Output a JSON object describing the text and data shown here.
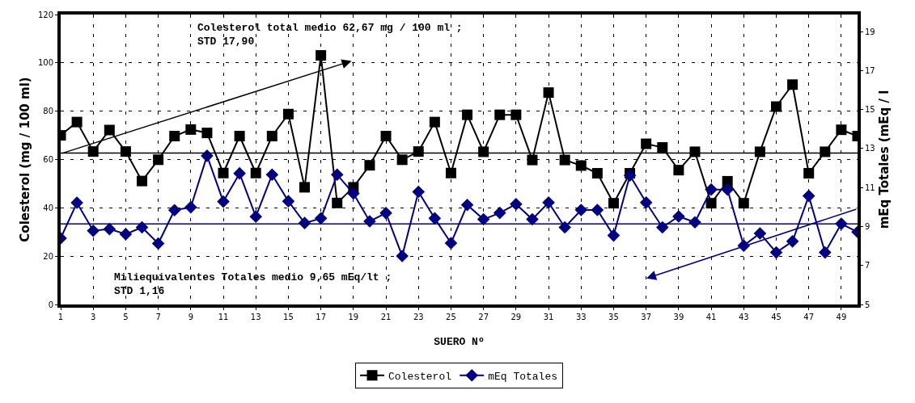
{
  "chart_data": {
    "type": "line",
    "xlabel": "SUERO Nº",
    "ylabel": "Colesterol (mg / 100 ml)",
    "y2label": "mEq Totales (mEq / l",
    "x": [
      1,
      2,
      3,
      4,
      5,
      6,
      7,
      8,
      9,
      10,
      11,
      12,
      13,
      14,
      15,
      16,
      17,
      18,
      19,
      20,
      21,
      22,
      23,
      24,
      25,
      26,
      27,
      28,
      29,
      30,
      31,
      32,
      33,
      34,
      35,
      36,
      37,
      38,
      39,
      40,
      41,
      42,
      43,
      44,
      45,
      46,
      47,
      48,
      49,
      50
    ],
    "series": [
      {
        "name": "Colesterol",
        "color": "#000000",
        "marker": "square",
        "values": [
          70,
          75.5,
          63.3,
          72.2,
          63.3,
          51.1,
          59.9,
          69.7,
          72.4,
          71,
          54.4,
          69.7,
          54.4,
          69.7,
          78.8,
          48.5,
          103.1,
          42,
          48.5,
          57.6,
          69.7,
          59.9,
          63.3,
          75.5,
          54.4,
          78.5,
          63.2,
          78.5,
          78.5,
          59.8,
          87.7,
          59.8,
          57.5,
          54.3,
          41.9,
          54.3,
          66.5,
          65,
          55.6,
          63.2,
          41.9,
          51,
          41.9,
          63.2,
          81.9,
          91,
          54.3,
          63.2,
          72.3,
          69.7
        ]
      },
      {
        "name": "mEq Totales",
        "color": "#000080",
        "marker": "diamond",
        "axis": "y2",
        "values": [
          8.4,
          10.22,
          8.78,
          8.87,
          8.61,
          8.96,
          8.13,
          9.84,
          9.99,
          12.63,
          10.28,
          11.73,
          9.51,
          11.66,
          10.3,
          9.18,
          9.42,
          11.66,
          10.7,
          9.27,
          9.69,
          7.49,
          10.78,
          9.42,
          8.15,
          10.11,
          9.37,
          9.7,
          10.15,
          9.37,
          10.23,
          8.96,
          9.85,
          9.85,
          8.54,
          11.62,
          10.23,
          8.96,
          9.52,
          9.22,
          10.9,
          10.9,
          8.02,
          8.65,
          7.67,
          8.24,
          10.57,
          7.67,
          9.14,
          8.72
        ]
      }
    ],
    "xlim": [
      1,
      50
    ],
    "xticks": [
      1,
      3,
      5,
      7,
      9,
      11,
      13,
      15,
      17,
      19,
      21,
      23,
      25,
      27,
      29,
      31,
      33,
      35,
      37,
      39,
      41,
      43,
      45,
      47,
      49
    ],
    "ylim": [
      0,
      120
    ],
    "yticks": [
      0,
      20,
      40,
      60,
      80,
      100,
      120
    ],
    "y2lim": [
      5,
      19.88
    ],
    "y2ticks": [
      5,
      7,
      9,
      11,
      13,
      15,
      17,
      19
    ],
    "ref_lines": [
      {
        "axis": "y",
        "value": 62.67,
        "color": "#000000"
      },
      {
        "axis": "y2",
        "value": 9.13,
        "color": "#000080"
      }
    ],
    "annotations": [
      "Colesterol total medio 62,67 mg / 100 ml ;\nSTD 17,90",
      "Miliequivalentes Totales medio 9,65 mEq/lt ;\nSTD 1,16"
    ],
    "grid": true,
    "legend": "bottom",
    "line_style": "solid"
  }
}
